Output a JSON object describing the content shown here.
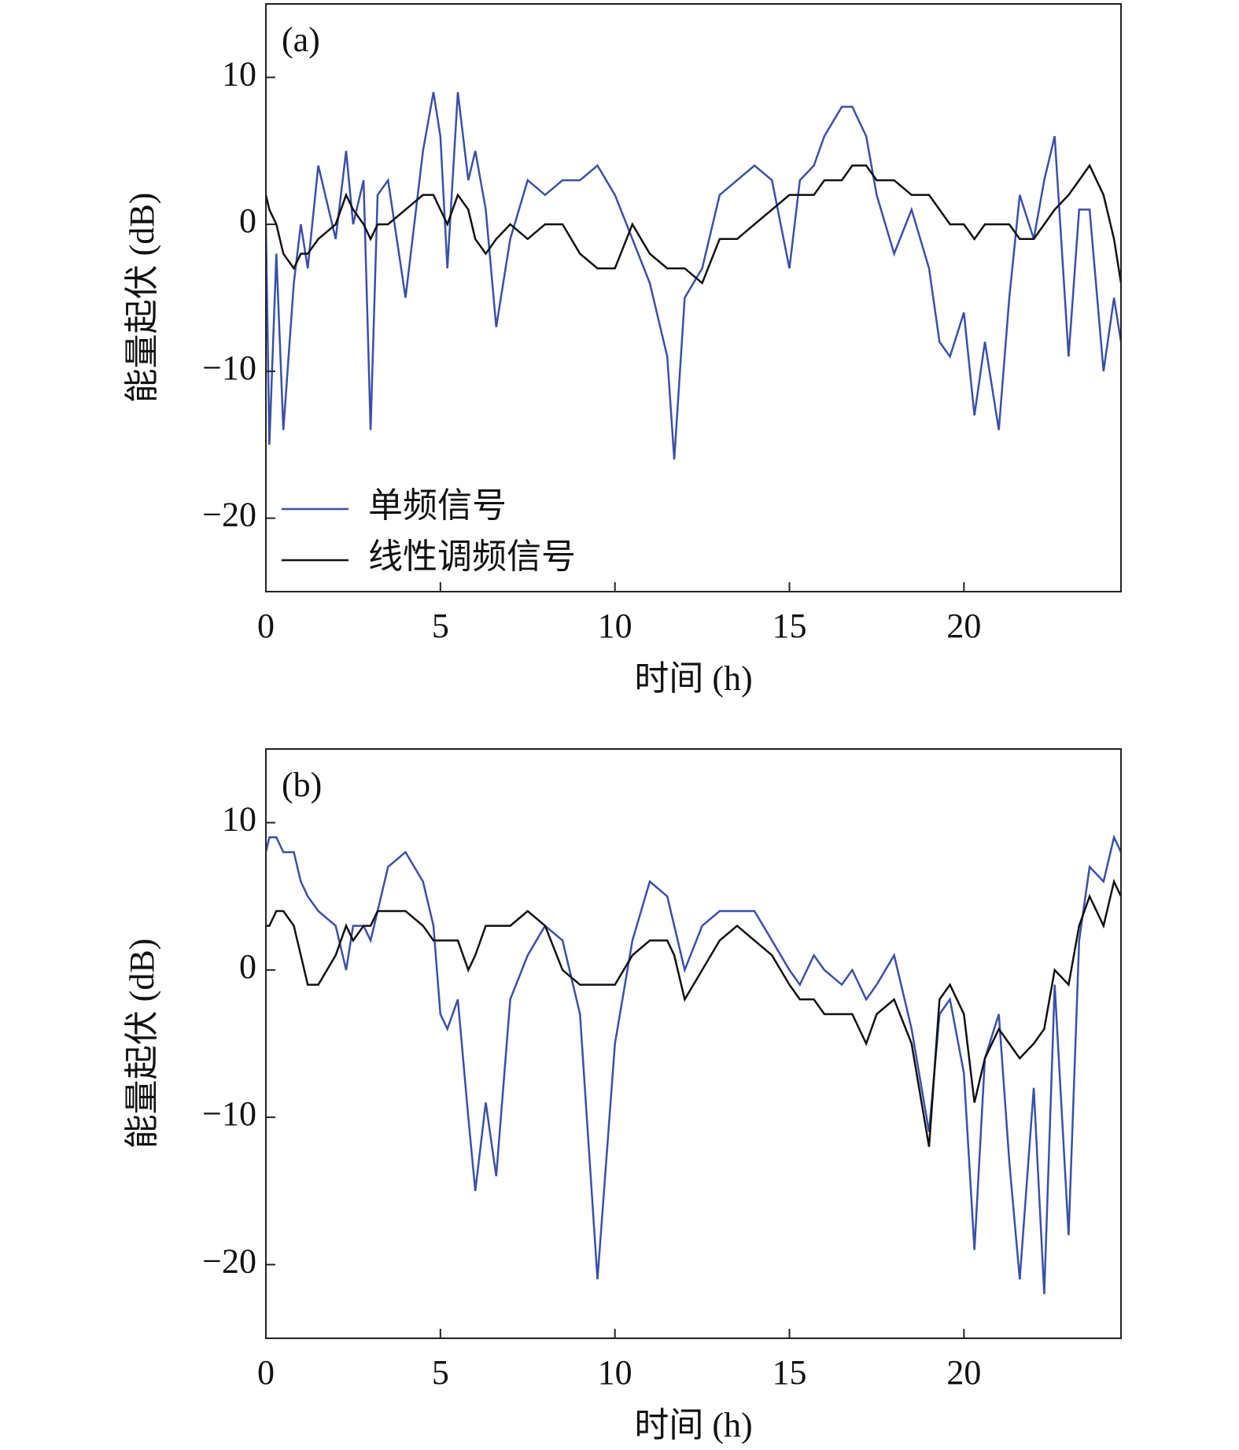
{
  "chart_data": [
    {
      "type": "line",
      "annotation": "(a)",
      "xlabel": "时间 (h)",
      "ylabel": "能量起伏 (dB)",
      "legend": "lower left",
      "x": [
        0,
        0.1,
        0.3,
        0.5,
        0.8,
        1,
        1.2,
        1.5,
        2,
        2.3,
        2.5,
        2.8,
        3,
        3.2,
        3.5,
        4,
        4.5,
        4.8,
        5,
        5.2,
        5.5,
        5.8,
        6,
        6.3,
        6.6,
        7,
        7.5,
        8,
        8.5,
        9,
        9.5,
        10,
        10.5,
        11,
        11.5,
        11.7,
        12,
        12.5,
        13,
        13.5,
        14,
        14.5,
        15,
        15.3,
        15.7,
        16,
        16.5,
        16.8,
        17.2,
        17.5,
        18,
        18.5,
        19,
        19.3,
        19.6,
        20,
        20.3,
        20.6,
        21,
        21.3,
        21.6,
        22,
        22.3,
        22.6,
        23,
        23.3,
        23.6,
        24,
        24.3,
        24.5
      ],
      "series": [
        {
          "name": "单频信号",
          "color": "#3a50a8",
          "values": [
            0,
            -15,
            -2,
            -14,
            -4,
            0,
            -3,
            4,
            -1,
            5,
            0,
            3,
            -14,
            2,
            3,
            -5,
            5,
            9,
            6,
            -3,
            9,
            3,
            5,
            1,
            -7,
            -1,
            3,
            2,
            3,
            3,
            4,
            2,
            -1,
            -4,
            -9,
            -16,
            -5,
            -3,
            2,
            3,
            4,
            3,
            -3,
            3,
            4,
            6,
            8,
            8,
            6,
            2,
            -2,
            1,
            -3,
            -8,
            -9,
            -6,
            -13,
            -8,
            -14,
            -5,
            2,
            -1,
            3,
            6,
            -9,
            1,
            1,
            -10,
            -5,
            -8
          ]
        },
        {
          "name": "线性调频信号",
          "color": "#111111",
          "values": [
            2,
            1,
            0,
            -2,
            -3,
            -2,
            -2,
            -1,
            0,
            2,
            1,
            0,
            -1,
            0,
            0,
            1,
            2,
            2,
            1,
            0,
            2,
            1,
            -1,
            -2,
            -1,
            0,
            -1,
            0,
            0,
            -2,
            -3,
            -3,
            0,
            -2,
            -3,
            -3,
            -3,
            -4,
            -1,
            -1,
            0,
            1,
            2,
            2,
            2,
            3,
            3,
            4,
            4,
            3,
            3,
            2,
            2,
            1,
            0,
            0,
            -1,
            0,
            0,
            0,
            -1,
            -1,
            0,
            1,
            2,
            3,
            4,
            2,
            -1,
            -4
          ]
        }
      ],
      "xlim": [
        0,
        24.5
      ],
      "xticks": [
        0,
        5,
        10,
        15,
        20
      ],
      "ylim": [
        -25,
        15
      ],
      "yticks": [
        {
          "value": -20,
          "label": "−20"
        },
        {
          "value": -10,
          "label": "−10"
        },
        0,
        10
      ]
    },
    {
      "type": "line",
      "annotation": "(b)",
      "xlabel": "时间 (h)",
      "ylabel": "能量起伏 (dB)",
      "x": [
        0,
        0.1,
        0.3,
        0.5,
        0.8,
        1,
        1.2,
        1.5,
        2,
        2.3,
        2.5,
        2.8,
        3,
        3.2,
        3.5,
        4,
        4.5,
        4.8,
        5,
        5.2,
        5.5,
        5.8,
        6,
        6.3,
        6.6,
        7,
        7.5,
        8,
        8.5,
        9,
        9.5,
        10,
        10.5,
        11,
        11.5,
        11.7,
        12,
        12.5,
        13,
        13.5,
        14,
        14.5,
        15,
        15.3,
        15.7,
        16,
        16.5,
        16.8,
        17.2,
        17.5,
        18,
        18.5,
        19,
        19.3,
        19.6,
        20,
        20.3,
        20.6,
        21,
        21.3,
        21.6,
        22,
        22.3,
        22.6,
        23,
        23.3,
        23.6,
        24,
        24.3,
        24.5
      ],
      "series": [
        {
          "color": "#3a50a8",
          "values": [
            8,
            9,
            9,
            8,
            8,
            6,
            5,
            4,
            3,
            0,
            3,
            3,
            2,
            4,
            7,
            8,
            6,
            3,
            -3,
            -4,
            -2,
            -10,
            -15,
            -9,
            -14,
            -2,
            1,
            3,
            2,
            -3,
            -21,
            -5,
            2,
            6,
            5,
            3,
            0,
            3,
            4,
            4,
            4,
            2,
            0,
            -1,
            1,
            0,
            -1,
            0,
            -2,
            -1,
            1,
            -4,
            -11,
            -3,
            -2,
            -7,
            -19,
            -6,
            -3,
            -13,
            -21,
            -8,
            -22,
            -1,
            -18,
            2,
            7,
            6,
            9,
            8
          ]
        },
        {
          "color": "#111111",
          "values": [
            3,
            3,
            4,
            4,
            3,
            1,
            -1,
            -1,
            1,
            3,
            2,
            3,
            3,
            4,
            4,
            4,
            3,
            2,
            2,
            2,
            2,
            0,
            1,
            3,
            3,
            3,
            4,
            3,
            0,
            -1,
            -1,
            -1,
            1,
            2,
            2,
            1,
            -2,
            0,
            2,
            3,
            2,
            1,
            -1,
            -2,
            -2,
            -3,
            -3,
            -3,
            -5,
            -3,
            -2,
            -5,
            -12,
            -2,
            -1,
            -3,
            -9,
            -6,
            -4,
            -5,
            -6,
            -5,
            -4,
            0,
            -1,
            3,
            5,
            3,
            6,
            5
          ]
        }
      ],
      "xlim": [
        0,
        24.5
      ],
      "xticks": [
        0,
        5,
        10,
        15,
        20
      ],
      "ylim": [
        -25,
        15
      ],
      "yticks": [
        {
          "value": -20,
          "label": "−20"
        },
        {
          "value": -10,
          "label": "−10"
        },
        0,
        10
      ]
    }
  ]
}
